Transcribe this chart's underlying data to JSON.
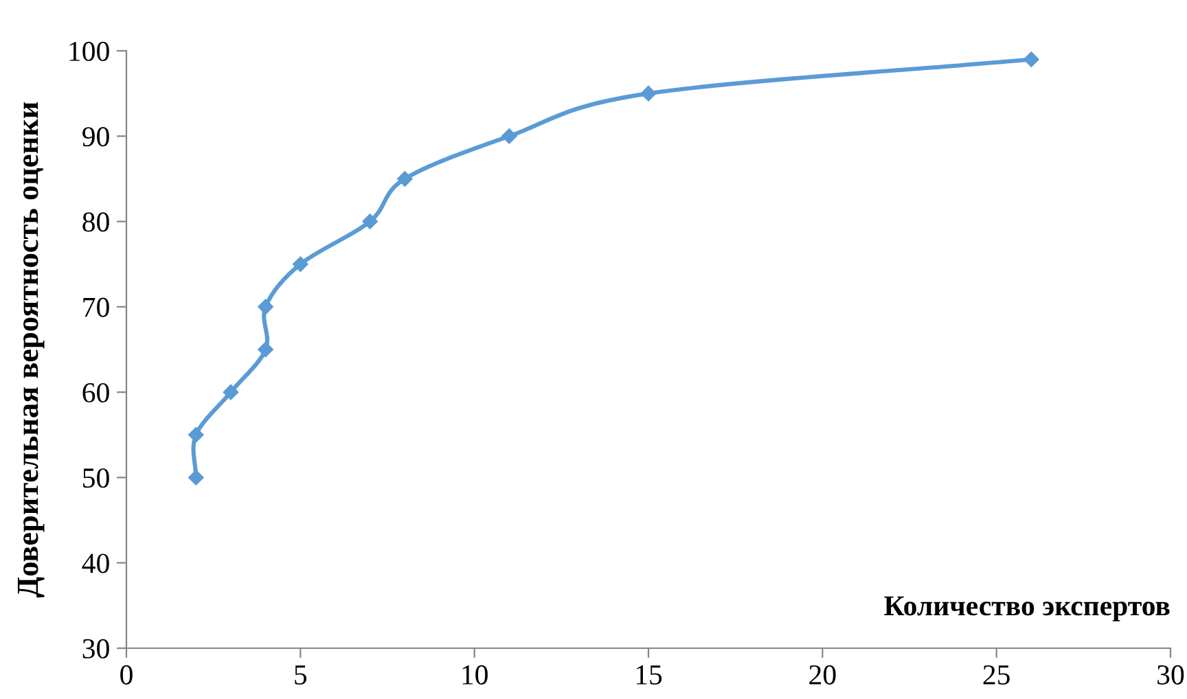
{
  "chart_data": {
    "type": "line",
    "xlabel": "Количество экспертов",
    "ylabel": "Доверительная вероятность оценки",
    "x": [
      2,
      2,
      3,
      4,
      4,
      5,
      7,
      8,
      11,
      15,
      26
    ],
    "series": [
      {
        "color": "#5b9bd5",
        "values": [
          50,
          55,
          60,
          65,
          70,
          75,
          80,
          85,
          90,
          95,
          99
        ]
      }
    ],
    "xlim": [
      0,
      30
    ],
    "xticks": [
      0,
      5,
      10,
      15,
      20,
      25,
      30
    ],
    "ylim": [
      30,
      100
    ],
    "yticks": [
      30,
      40,
      50,
      60,
      70,
      80,
      90,
      100
    ],
    "marker": "diamond",
    "line_style": "solid",
    "grid": false,
    "legend": false
  }
}
